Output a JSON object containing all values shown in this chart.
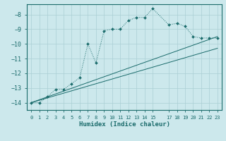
{
  "xlabel": "Humidex (Indice chaleur)",
  "bg_color": "#cce8ec",
  "grid_color": "#aacfd4",
  "line_color": "#1a6b6b",
  "xlim": [
    -0.5,
    23.5
  ],
  "ylim": [
    -14.5,
    -7.3
  ],
  "yticks": [
    -14,
    -13,
    -12,
    -11,
    -10,
    -9,
    -8
  ],
  "xtick_positions": [
    0,
    1,
    2,
    3,
    4,
    5,
    6,
    7,
    8,
    9,
    10,
    11,
    12,
    13,
    14,
    15,
    17,
    18,
    19,
    20,
    21,
    22,
    23
  ],
  "xtick_labels": [
    "0",
    "1",
    "2",
    "3",
    "4",
    "5",
    "6",
    "7",
    "8",
    "9",
    "10",
    "11",
    "12",
    "13",
    "14",
    "15",
    "17",
    "18",
    "19",
    "20",
    "21",
    "22",
    "23"
  ],
  "curve_x": [
    0,
    1,
    2,
    3,
    4,
    5,
    6,
    7,
    8,
    9,
    10,
    11,
    12,
    13,
    14,
    15,
    17,
    18,
    19,
    20,
    21,
    22,
    23
  ],
  "curve_y": [
    -14.0,
    -14.0,
    -13.6,
    -13.1,
    -13.1,
    -12.7,
    -12.3,
    -10.0,
    -11.3,
    -9.1,
    -9.0,
    -9.0,
    -8.4,
    -8.2,
    -8.2,
    -7.6,
    -8.7,
    -8.6,
    -8.8,
    -9.5,
    -9.6,
    -9.6,
    -9.6
  ],
  "line1_x": [
    0,
    23
  ],
  "line1_y": [
    -14.0,
    -9.5
  ],
  "line2_x": [
    0,
    23
  ],
  "line2_y": [
    -14.0,
    -10.3
  ]
}
